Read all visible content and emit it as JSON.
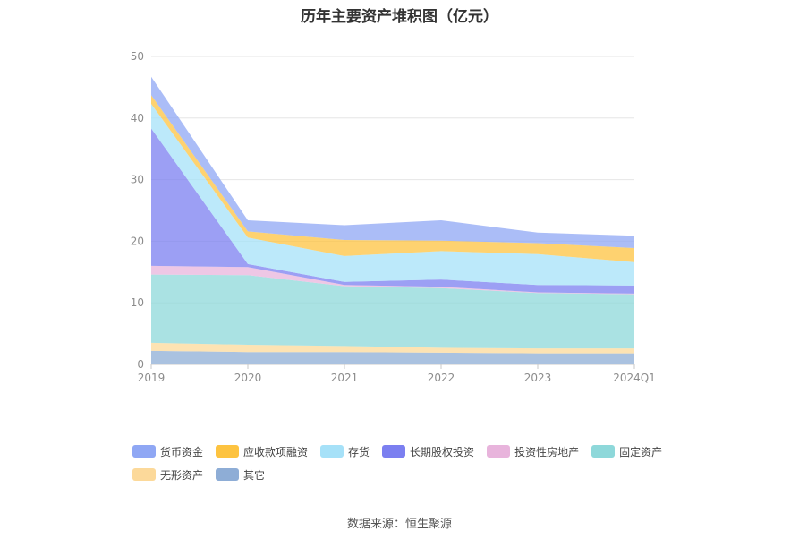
{
  "chart_data": {
    "type": "area",
    "stacked": true,
    "title": "历年主要资产堆积图（亿元）",
    "categories": [
      "2019",
      "2020",
      "2021",
      "2022",
      "2023",
      "2024Q1"
    ],
    "ylim": [
      0,
      50
    ],
    "yticks": [
      0,
      10,
      20,
      30,
      40,
      50
    ],
    "grid": true,
    "legend_position": "bottom",
    "series": [
      {
        "name": "其它",
        "color": "#8eadd6",
        "values": [
          2.2,
          2.0,
          2.0,
          1.9,
          1.8,
          1.8
        ]
      },
      {
        "name": "无形资产",
        "color": "#fcd99a",
        "values": [
          1.3,
          1.2,
          1.0,
          0.8,
          0.8,
          0.8
        ]
      },
      {
        "name": "固定资产",
        "color": "#8ed8da",
        "values": [
          11.1,
          11.3,
          9.7,
          9.7,
          9.0,
          8.8
        ]
      },
      {
        "name": "投资性房地产",
        "color": "#e8b4dc",
        "values": [
          1.4,
          1.3,
          0.2,
          0.2,
          0.1,
          0.1
        ]
      },
      {
        "name": "长期股权投资",
        "color": "#7b7ff0",
        "values": [
          22.3,
          0.5,
          0.5,
          1.2,
          1.2,
          1.3
        ]
      },
      {
        "name": "存货",
        "color": "#a6e1f8",
        "values": [
          4.0,
          4.3,
          4.2,
          4.6,
          5.0,
          3.8
        ]
      },
      {
        "name": "应收款项融资",
        "color": "#fdc340",
        "values": [
          1.4,
          1.0,
          2.6,
          1.7,
          1.8,
          2.3
        ]
      },
      {
        "name": "货币资金",
        "color": "#8fa7f4",
        "values": [
          3.0,
          1.8,
          2.4,
          3.3,
          1.7,
          2.0
        ]
      }
    ],
    "legend_order": [
      "货币资金",
      "应收款项融资",
      "存货",
      "长期股权投资",
      "投资性房地产",
      "固定资产",
      "无形资产",
      "其它"
    ]
  },
  "source_text": "数据来源：恒生聚源"
}
